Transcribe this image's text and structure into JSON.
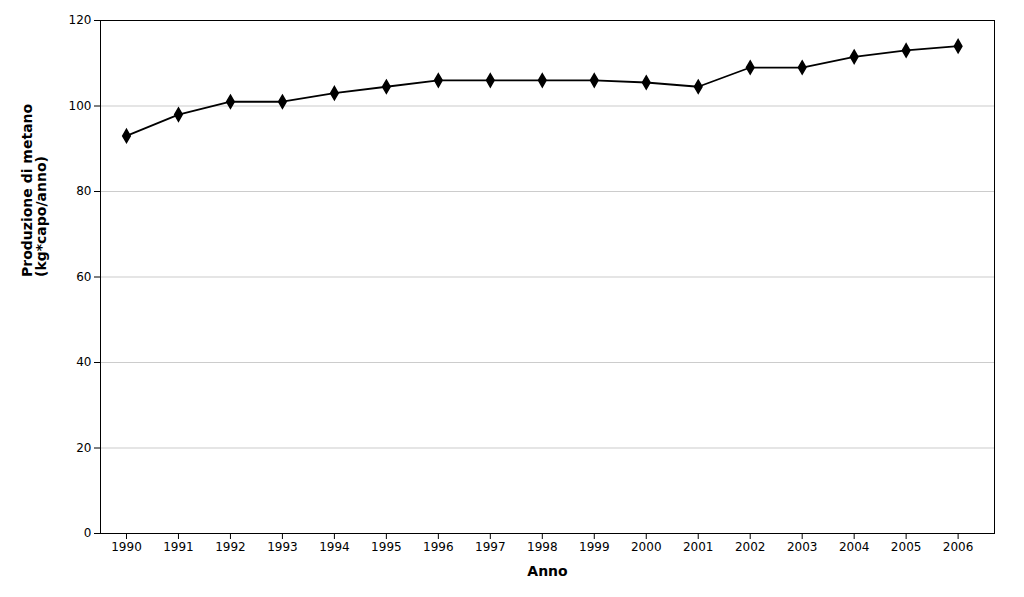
{
  "chart_data": {
    "type": "line",
    "x": [
      1990,
      1991,
      1992,
      1993,
      1994,
      1995,
      1996,
      1997,
      1998,
      1999,
      2000,
      2001,
      2002,
      2003,
      2004,
      2005,
      2006
    ],
    "values": [
      93,
      98,
      101,
      101,
      103,
      104.5,
      106,
      106,
      106,
      106,
      105.5,
      104.5,
      109,
      109,
      111.5,
      113,
      114
    ],
    "marker": "diamond",
    "xlabel": "Anno",
    "ylabel": "Produzione di metano\n(kg*capo/anno)",
    "xlim": [
      1989.5,
      2006.7
    ],
    "xticks": [
      1990,
      1991,
      1992,
      1993,
      1994,
      1995,
      1996,
      1997,
      1998,
      1999,
      2000,
      2001,
      2002,
      2003,
      2004,
      2005,
      2006
    ],
    "ylim": [
      0,
      120
    ],
    "yticks": [
      0,
      20,
      40,
      60,
      80,
      100,
      120
    ],
    "grid": true
  }
}
